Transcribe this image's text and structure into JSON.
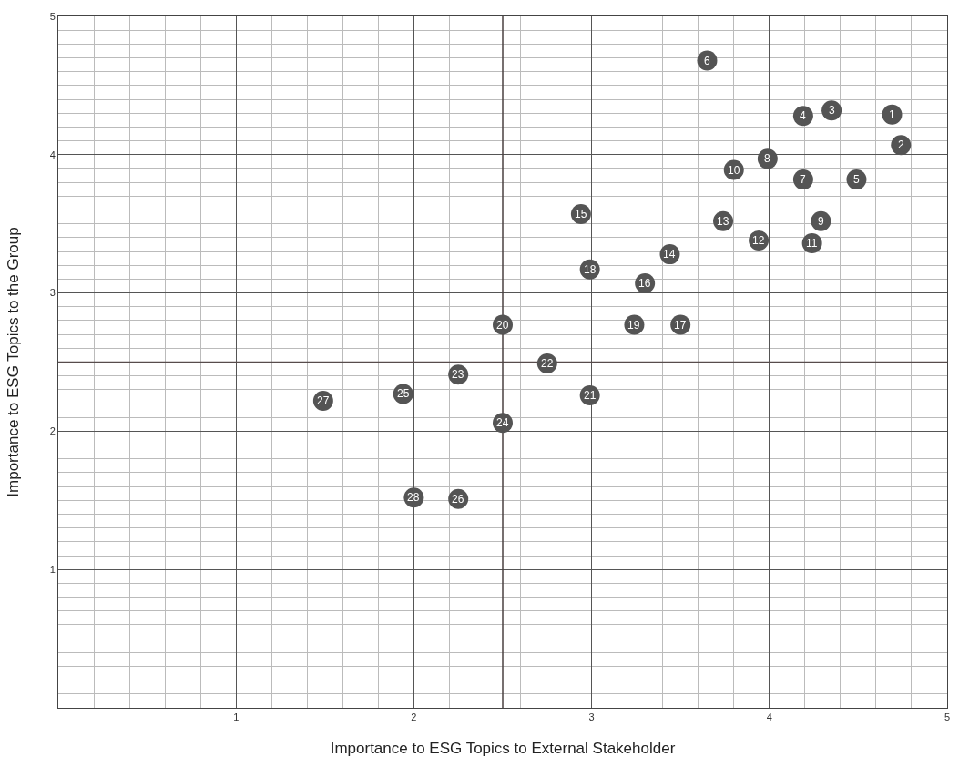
{
  "chart_data": {
    "type": "scatter",
    "xlabel": "Importance to ESG Topics to External Stakeholder",
    "ylabel": "Importance to ESG Topics to the Group",
    "x": [
      4.69,
      4.74,
      4.35,
      4.19,
      4.49,
      3.65,
      4.19,
      3.99,
      4.29,
      3.8,
      4.24,
      3.94,
      3.74,
      3.44,
      2.94,
      3.3,
      3.5,
      2.99,
      3.24,
      2.5,
      2.99,
      2.75,
      2.25,
      2.5,
      1.94,
      2.25,
      1.49,
      2.0
    ],
    "values": [
      4.29,
      4.07,
      4.32,
      4.28,
      3.82,
      4.68,
      3.82,
      3.97,
      3.52,
      3.89,
      3.36,
      3.38,
      3.52,
      3.28,
      3.57,
      3.07,
      2.77,
      3.17,
      2.77,
      2.77,
      2.26,
      2.49,
      2.41,
      2.06,
      2.27,
      1.51,
      2.22,
      1.52
    ],
    "annotations": [
      {
        "text": "1",
        "x": 4.69,
        "y": 4.29
      },
      {
        "text": "2",
        "x": 4.74,
        "y": 4.07
      },
      {
        "text": "3",
        "x": 4.35,
        "y": 4.32
      },
      {
        "text": "4",
        "x": 4.19,
        "y": 4.28
      },
      {
        "text": "5",
        "x": 4.49,
        "y": 3.82
      },
      {
        "text": "6",
        "x": 3.65,
        "y": 4.68
      },
      {
        "text": "7",
        "x": 4.19,
        "y": 3.82
      },
      {
        "text": "8",
        "x": 3.99,
        "y": 3.97
      },
      {
        "text": "9",
        "x": 4.29,
        "y": 3.52
      },
      {
        "text": "10",
        "x": 3.8,
        "y": 3.89
      },
      {
        "text": "11",
        "x": 4.24,
        "y": 3.36
      },
      {
        "text": "12",
        "x": 3.94,
        "y": 3.38
      },
      {
        "text": "13",
        "x": 3.74,
        "y": 3.52
      },
      {
        "text": "14",
        "x": 3.44,
        "y": 3.28
      },
      {
        "text": "15",
        "x": 2.94,
        "y": 3.57
      },
      {
        "text": "16",
        "x": 3.3,
        "y": 3.07
      },
      {
        "text": "17",
        "x": 3.5,
        "y": 2.77
      },
      {
        "text": "18",
        "x": 2.99,
        "y": 3.17
      },
      {
        "text": "19",
        "x": 3.24,
        "y": 2.77
      },
      {
        "text": "20",
        "x": 2.5,
        "y": 2.77
      },
      {
        "text": "21",
        "x": 2.99,
        "y": 2.26
      },
      {
        "text": "22",
        "x": 2.75,
        "y": 2.49
      },
      {
        "text": "23",
        "x": 2.25,
        "y": 2.41
      },
      {
        "text": "24",
        "x": 2.5,
        "y": 2.06
      },
      {
        "text": "25",
        "x": 1.94,
        "y": 2.27
      },
      {
        "text": "26",
        "x": 2.25,
        "y": 1.51
      },
      {
        "text": "27",
        "x": 1.49,
        "y": 2.22
      },
      {
        "text": "28",
        "x": 2.0,
        "y": 1.52
      }
    ],
    "color": "#545454",
    "marker": "circle",
    "xlim": [
      0,
      5
    ],
    "xticks": [
      1,
      2,
      3,
      4,
      5
    ],
    "ylim": [
      0,
      5
    ],
    "yticks": [
      1,
      2,
      3,
      4,
      5
    ],
    "grid": true,
    "ref_lines": [
      {
        "axis": "x",
        "value": 2.5,
        "color": "#4a4040"
      },
      {
        "axis": "y",
        "value": 2.5,
        "color": "#574c4c"
      }
    ]
  }
}
